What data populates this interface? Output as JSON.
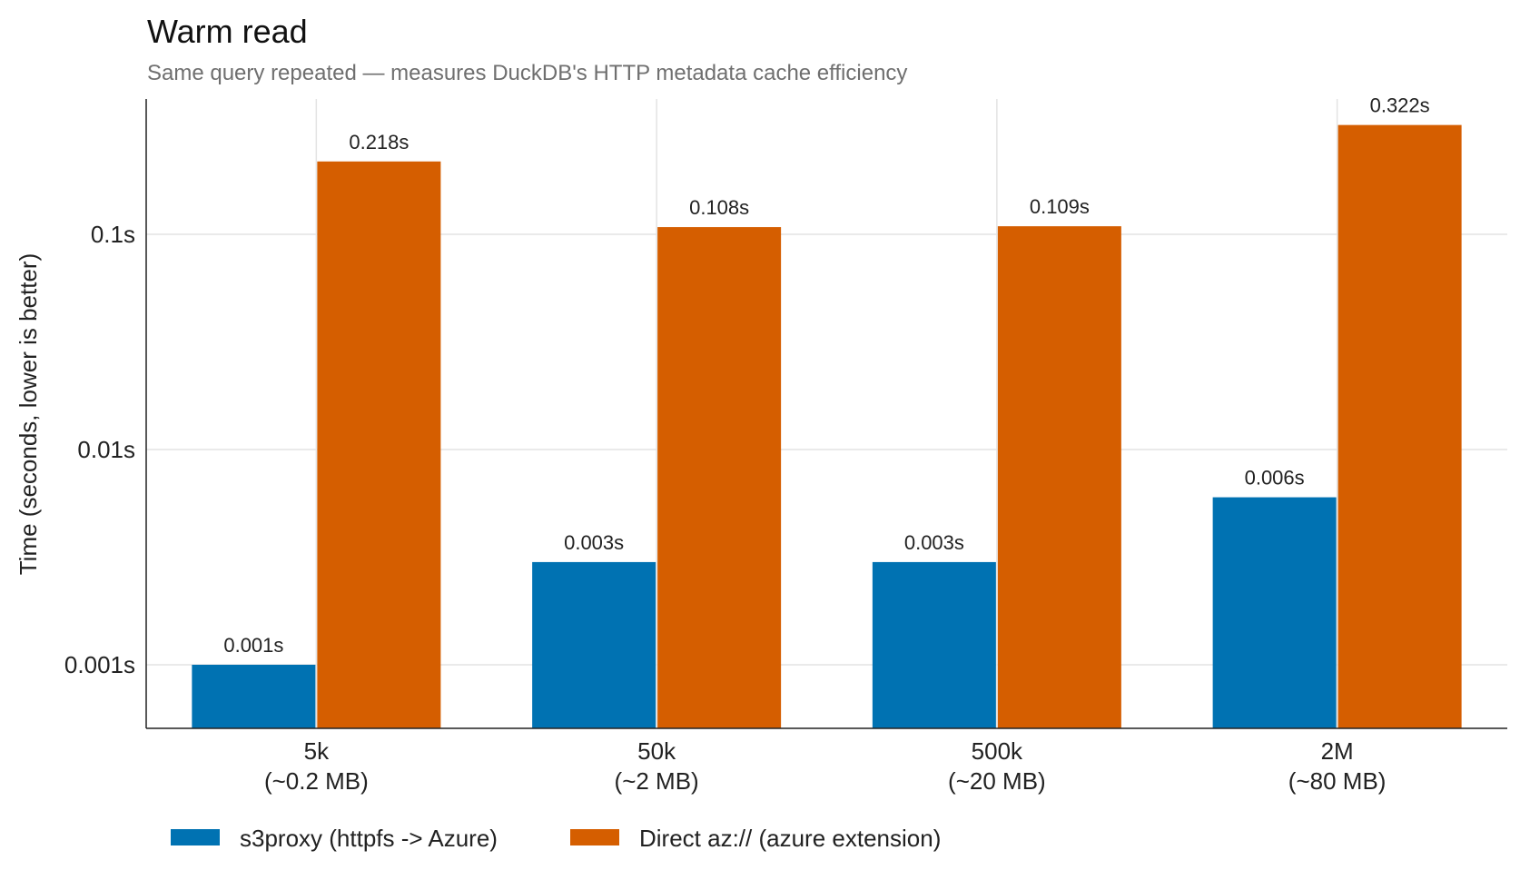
{
  "chart_data": {
    "type": "bar",
    "title": "Warm read",
    "subtitle": "Same query repeated — measures DuckDB's HTTP metadata cache efficiency",
    "xlabel": "",
    "ylabel": "Time (seconds, lower is better)",
    "yscale": "log",
    "ylim": [
      0.0005,
      0.4
    ],
    "yticks": [
      {
        "value": 0.001,
        "label": "0.001s"
      },
      {
        "value": 0.01,
        "label": "0.01s"
      },
      {
        "value": 0.1,
        "label": "0.1s"
      }
    ],
    "grid": true,
    "legend_position": "bottom-left",
    "categories": [
      {
        "line1": "5k",
        "line2": "(~0.2 MB)"
      },
      {
        "line1": "50k",
        "line2": "(~2 MB)"
      },
      {
        "line1": "500k",
        "line2": "(~20 MB)"
      },
      {
        "line1": "2M",
        "line2": "(~80 MB)"
      }
    ],
    "series": [
      {
        "name": "s3proxy (httpfs -> Azure)",
        "color": "#0072b2",
        "values": [
          0.001,
          0.003,
          0.003,
          0.006
        ],
        "labels": [
          "0.001s",
          "0.003s",
          "0.003s",
          "0.006s"
        ]
      },
      {
        "name": "Direct az:// (azure extension)",
        "color": "#d55e00",
        "values": [
          0.218,
          0.108,
          0.109,
          0.322
        ],
        "labels": [
          "0.218s",
          "0.108s",
          "0.109s",
          "0.322s"
        ]
      }
    ]
  }
}
